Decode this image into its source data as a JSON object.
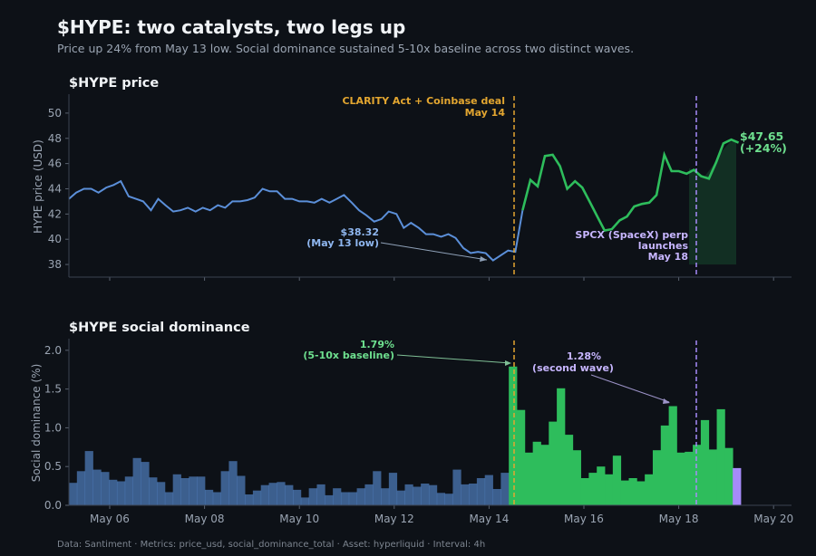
{
  "header": {
    "title": "$HYPE: two catalysts, two legs up",
    "subtitle": "Price up 24% from May 13 low. Social dominance sustained 5-10x baseline across two distinct waves."
  },
  "footer": {
    "text": "Data: Santiment  ·  Metrics: price_usd, social_dominance_total  ·  Asset: hyperliquid  ·  Interval: 4h"
  },
  "colors": {
    "pre_catalyst": "#5b8fd9",
    "post_catalyst": "#2ebd5c",
    "second_wave": "#a78bfa",
    "catalyst_line": "#e3a630",
    "background": "#0d1117"
  },
  "chart_data": [
    {
      "type": "line",
      "title": "$HYPE price",
      "ylabel": "HYPE price (USD)",
      "x_unit": "days in May 2026",
      "ylim": [
        37,
        51.5
      ],
      "xlim": [
        5.2,
        20.2
      ],
      "yticks": [
        38,
        40,
        42,
        44,
        46,
        48,
        50
      ],
      "xticks": [
        {
          "x": 6,
          "label": "May 06"
        },
        {
          "x": 8,
          "label": "May 08"
        },
        {
          "x": 10,
          "label": "May 10"
        },
        {
          "x": 12,
          "label": "May 12"
        },
        {
          "x": 14,
          "label": "May 14"
        },
        {
          "x": 16,
          "label": "May 16"
        },
        {
          "x": 18,
          "label": "May 18"
        },
        {
          "x": 20,
          "label": "May 20"
        }
      ],
      "series": [
        {
          "x": [
            5.2,
            5.33,
            5.47,
            5.6,
            5.73,
            5.87,
            6,
            6.13,
            6.27,
            6.4,
            6.53,
            6.67,
            6.8,
            6.93,
            7.07,
            7.2,
            7.33,
            7.47,
            7.6,
            7.73,
            7.87,
            8,
            8.13,
            8.27,
            8.4,
            8.53,
            8.67,
            8.8,
            8.93,
            9.07,
            9.2,
            9.33,
            9.47,
            9.6,
            9.73,
            9.87,
            10,
            10.13,
            10.27,
            10.4,
            10.53,
            10.67,
            10.8,
            10.93,
            11.07,
            11.2,
            11.33,
            11.47,
            11.6,
            11.73,
            11.87,
            12,
            12.13,
            12.27,
            12.4,
            12.53,
            12.67,
            12.8,
            12.93,
            13.07,
            13.2,
            13.33,
            13.47,
            13.6,
            13.73,
            13.87,
            14,
            14.13,
            14.27,
            14.33
          ],
          "y": [
            43.2,
            43.7,
            44.0,
            44.0,
            43.7,
            44.1,
            44.3,
            44.6,
            43.4,
            43.2,
            43.0,
            42.3,
            43.2,
            42.7,
            42.2,
            42.3,
            42.5,
            42.2,
            42.5,
            42.3,
            42.7,
            42.5,
            43.0,
            43.0,
            43.1,
            43.3,
            44.0,
            43.8,
            43.8,
            43.2,
            43.2,
            43.0,
            43.0,
            42.9,
            43.2,
            42.9,
            43.2,
            43.5,
            42.9,
            42.3,
            41.9,
            41.4,
            41.6,
            42.2,
            42.0,
            40.9,
            41.3,
            40.9,
            40.4,
            40.4,
            40.2,
            40.4,
            40.1,
            39.3,
            38.9,
            39.0,
            38.9,
            38.32,
            38.7,
            39.1,
            39.0,
            42.5,
            44.7,
            44.2,
            46.6,
            46.7,
            45.8,
            44.0,
            44.6,
            44.5
          ],
          "color": "#5b8fd9",
          "split_at_x": 14.5
        },
        {
          "x": [
            14.5,
            14.67,
            14.8,
            14.93,
            15.07,
            15.2,
            15.33,
            15.47,
            15.6,
            15.73,
            15.87,
            16,
            16.13,
            16.27,
            16.4,
            16.53,
            16.67,
            16.8,
            16.93,
            17.07,
            17.2,
            17.33,
            17.47,
            17.6,
            17.73,
            17.87,
            18,
            18.13,
            18.27,
            18.4,
            18.53,
            18.67,
            18.8,
            18.93,
            19.07
          ],
          "y": [
            44.5,
            43.6,
            42.2,
            40.7,
            40.8,
            41.5,
            41.8,
            42.6,
            42.8,
            42.9,
            43.5,
            46.7,
            45.4,
            45.4,
            45.2,
            45.5,
            45.0,
            44.8,
            46.1,
            47.6,
            47.9,
            47.65,
            47.65,
            47.8,
            47.8,
            47.7,
            47.7,
            47.65,
            47.65,
            47.65,
            47.65,
            47.65,
            47.65,
            47.65,
            47.65
          ],
          "color": "#2ebd5c"
        }
      ],
      "annotations": [
        {
          "text": "CLARITY Act + Coinbase deal",
          "x": 14.5
        },
        {
          "text": "May 14",
          "x": 14.5
        },
        {
          "text": "$38.32",
          "x": 13.87,
          "y": 38.32
        },
        {
          "text": "(May 13 low)",
          "x": 13.87,
          "y": 38.32
        },
        {
          "text": "SPCX (SpaceX) perp",
          "x": 18.3
        },
        {
          "text": "launches",
          "x": 18.3
        },
        {
          "text": "May 18",
          "x": 18.3
        },
        {
          "text": "$47.65",
          "y": 47.65
        },
        {
          "text": "(+24%)",
          "y": 47.65
        }
      ],
      "vlines": [
        14.5,
        18.3
      ]
    },
    {
      "type": "bar",
      "title": "$HYPE social dominance",
      "ylabel": "Social dominance (%)",
      "ylim": [
        0,
        2.15
      ],
      "xlim": [
        5.2,
        20.2
      ],
      "yticks": [
        0.0,
        0.5,
        1.0,
        1.5,
        2.0
      ],
      "bar_width": 0.1667,
      "bars": [
        {
          "x": 5.25,
          "v": 0.29
        },
        {
          "x": 5.42,
          "v": 0.44
        },
        {
          "x": 5.58,
          "v": 0.7
        },
        {
          "x": 5.75,
          "v": 0.46
        },
        {
          "x": 5.92,
          "v": 0.43
        },
        {
          "x": 6.08,
          "v": 0.33
        },
        {
          "x": 6.25,
          "v": 0.31
        },
        {
          "x": 6.42,
          "v": 0.37
        },
        {
          "x": 6.58,
          "v": 0.61
        },
        {
          "x": 6.75,
          "v": 0.56
        },
        {
          "x": 6.92,
          "v": 0.36
        },
        {
          "x": 7.08,
          "v": 0.3
        },
        {
          "x": 7.25,
          "v": 0.17
        },
        {
          "x": 7.42,
          "v": 0.4
        },
        {
          "x": 7.58,
          "v": 0.35
        },
        {
          "x": 7.75,
          "v": 0.37
        },
        {
          "x": 7.92,
          "v": 0.37
        },
        {
          "x": 8.08,
          "v": 0.2
        },
        {
          "x": 8.25,
          "v": 0.17
        },
        {
          "x": 8.42,
          "v": 0.44
        },
        {
          "x": 8.58,
          "v": 0.57
        },
        {
          "x": 8.75,
          "v": 0.38
        },
        {
          "x": 8.92,
          "v": 0.14
        },
        {
          "x": 9.08,
          "v": 0.19
        },
        {
          "x": 9.25,
          "v": 0.26
        },
        {
          "x": 9.42,
          "v": 0.29
        },
        {
          "x": 9.58,
          "v": 0.3
        },
        {
          "x": 9.75,
          "v": 0.26
        },
        {
          "x": 9.92,
          "v": 0.2
        },
        {
          "x": 10.08,
          "v": 0.1
        },
        {
          "x": 10.25,
          "v": 0.22
        },
        {
          "x": 10.42,
          "v": 0.27
        },
        {
          "x": 10.58,
          "v": 0.13
        },
        {
          "x": 10.75,
          "v": 0.22
        },
        {
          "x": 10.92,
          "v": 0.17
        },
        {
          "x": 11.08,
          "v": 0.17
        },
        {
          "x": 11.25,
          "v": 0.22
        },
        {
          "x": 11.42,
          "v": 0.27
        },
        {
          "x": 11.58,
          "v": 0.44
        },
        {
          "x": 11.75,
          "v": 0.22
        },
        {
          "x": 11.92,
          "v": 0.42
        },
        {
          "x": 12.08,
          "v": 0.19
        },
        {
          "x": 12.25,
          "v": 0.27
        },
        {
          "x": 12.42,
          "v": 0.24
        },
        {
          "x": 12.58,
          "v": 0.28
        },
        {
          "x": 12.75,
          "v": 0.26
        },
        {
          "x": 12.92,
          "v": 0.16
        },
        {
          "x": 13.08,
          "v": 0.15
        },
        {
          "x": 13.25,
          "v": 0.46
        },
        {
          "x": 13.42,
          "v": 0.27
        },
        {
          "x": 13.58,
          "v": 0.28
        },
        {
          "x": 13.75,
          "v": 0.35
        },
        {
          "x": 13.92,
          "v": 0.39
        },
        {
          "x": 14.08,
          "v": 0.21
        },
        {
          "x": 14.25,
          "v": 0.42
        },
        {
          "x": 14.42,
          "v": 1.79
        },
        {
          "x": 14.58,
          "v": 1.23
        },
        {
          "x": 14.75,
          "v": 0.68
        },
        {
          "x": 14.92,
          "v": 0.82
        },
        {
          "x": 15.08,
          "v": 0.78
        },
        {
          "x": 15.25,
          "v": 1.08
        },
        {
          "x": 15.42,
          "v": 1.51
        },
        {
          "x": 15.58,
          "v": 0.91
        },
        {
          "x": 15.75,
          "v": 0.71
        },
        {
          "x": 15.92,
          "v": 0.35
        },
        {
          "x": 16.08,
          "v": 0.42
        },
        {
          "x": 16.25,
          "v": 0.5
        },
        {
          "x": 16.42,
          "v": 0.4
        },
        {
          "x": 16.58,
          "v": 0.64
        },
        {
          "x": 16.75,
          "v": 0.32
        },
        {
          "x": 16.92,
          "v": 0.35
        },
        {
          "x": 17.08,
          "v": 0.31
        },
        {
          "x": 17.25,
          "v": 0.4
        },
        {
          "x": 17.42,
          "v": 0.71
        },
        {
          "x": 17.58,
          "v": 1.03
        },
        {
          "x": 17.75,
          "v": 1.28
        },
        {
          "x": 17.92,
          "v": 0.68
        },
        {
          "x": 18.08,
          "v": 0.69
        },
        {
          "x": 18.25,
          "v": 0.78
        },
        {
          "x": 18.42,
          "v": 1.1
        },
        {
          "x": 18.58,
          "v": 0.72
        },
        {
          "x": 18.75,
          "v": 1.24
        },
        {
          "x": 18.92,
          "v": 0.74
        },
        {
          "x": 19.08,
          "v": 0.48
        }
      ],
      "annotations": [
        {
          "text": "1.79%",
          "x": 14.42,
          "y": 1.79
        },
        {
          "text": "(5-10x baseline)",
          "x": 14.42,
          "y": 1.79
        },
        {
          "text": "1.28%",
          "x": 17.75,
          "y": 1.28
        },
        {
          "text": "(second wave)",
          "x": 17.75,
          "y": 1.28
        }
      ],
      "vlines": [
        14.5,
        18.3
      ]
    }
  ]
}
